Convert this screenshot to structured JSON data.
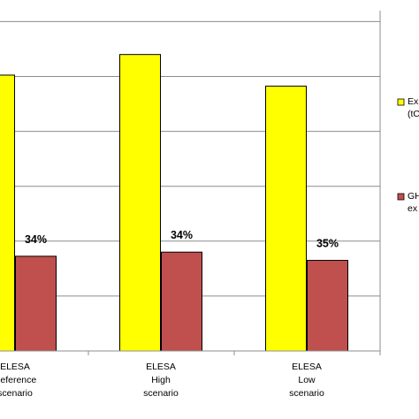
{
  "chart_data": {
    "type": "bar",
    "categories": [
      [
        "ELESA",
        "Reference",
        "scenario"
      ],
      [
        "ELESA",
        "High",
        "scenario"
      ],
      [
        "ELESA",
        "Low",
        "scenario"
      ]
    ],
    "series": [
      {
        "name": "Exp (tC",
        "name_lines": [
          "Exp",
          "(tC"
        ],
        "color": "#ffff00",
        "values": [
          100.5,
          108,
          96.5
        ]
      },
      {
        "name": "GH ex",
        "name_lines": [
          "GH",
          "ex"
        ],
        "color": "#c0504d",
        "values": [
          34.5,
          36,
          33
        ]
      }
    ],
    "data_labels": [
      "34%",
      "34%",
      "35%"
    ],
    "ylim": [
      0,
      124
    ],
    "grid": true,
    "legend_position": "right",
    "title": "",
    "xlabel": "",
    "ylabel": ""
  }
}
